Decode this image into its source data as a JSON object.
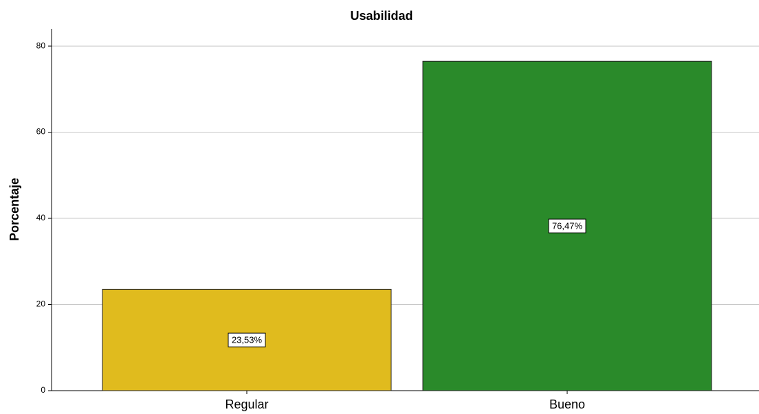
{
  "chart_data": {
    "type": "bar",
    "title": "Usabilidad",
    "y_label": "Porcentaje",
    "categories": [
      "Regular",
      "Bueno"
    ],
    "values": [
      23.53,
      76.47
    ],
    "value_labels": [
      "23,53%",
      "76,47%"
    ],
    "colors": [
      "#e0bb1e",
      "#2a8a2a"
    ],
    "ylim": [
      0,
      84
    ],
    "yticks": [
      0,
      20,
      40,
      60,
      80
    ],
    "grid": true
  }
}
